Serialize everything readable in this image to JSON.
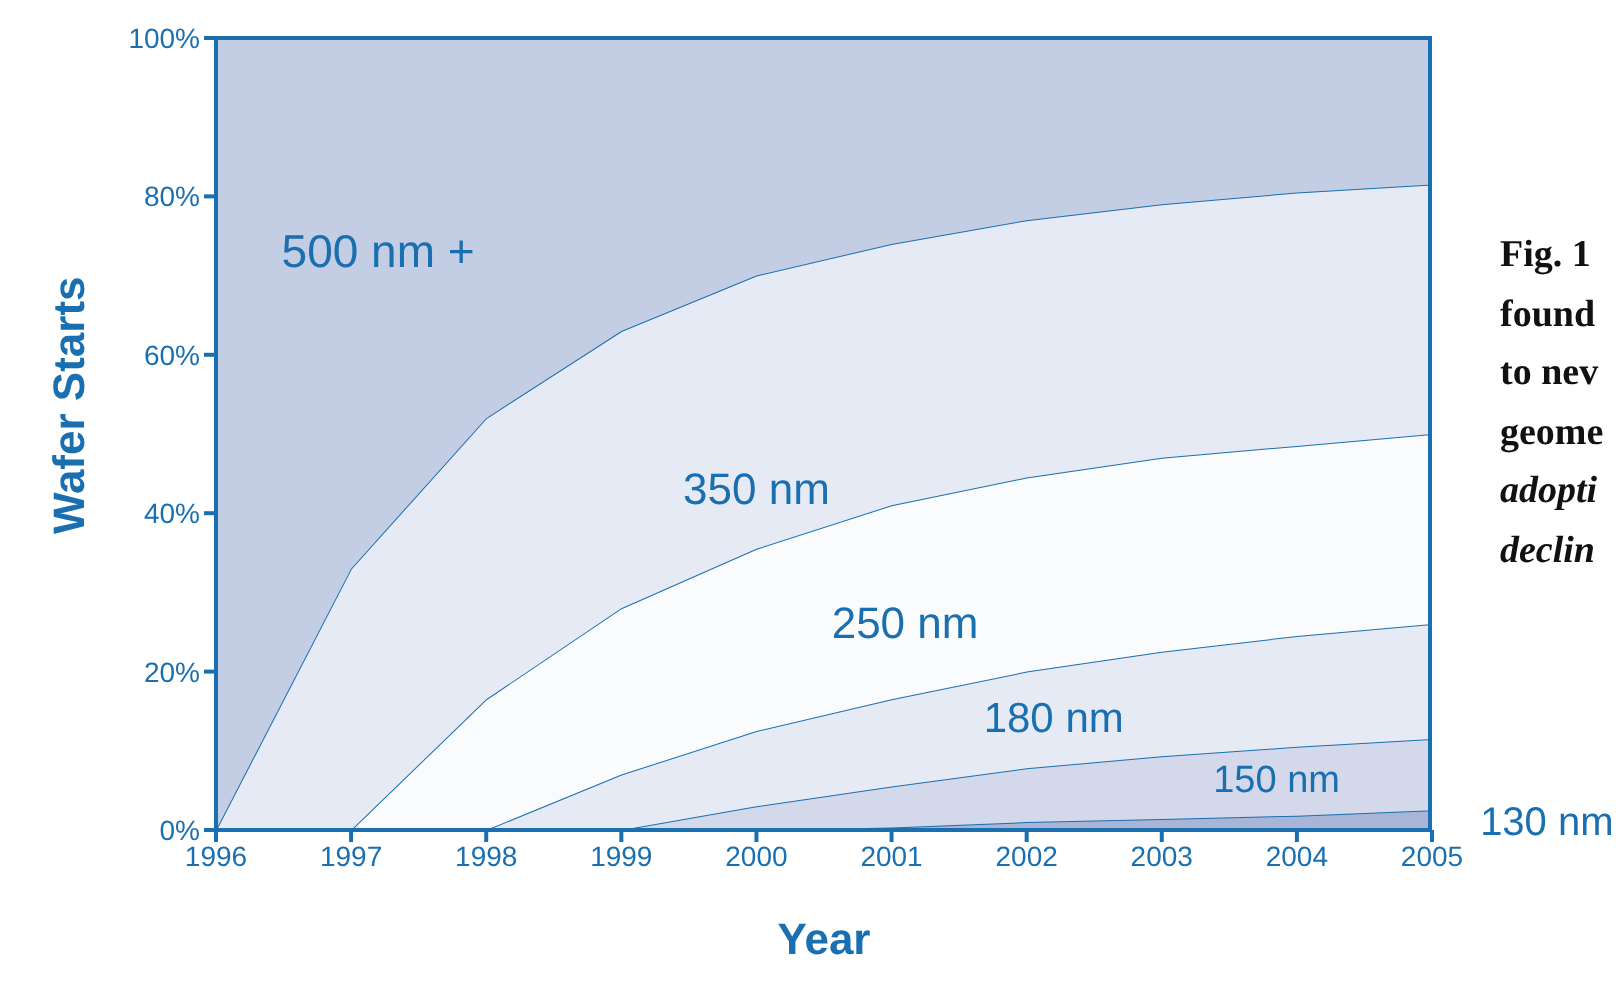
{
  "chart_data": {
    "type": "area",
    "stacked": true,
    "xlabel": "Year",
    "ylabel": "Wafer Starts",
    "x": [
      1996,
      1997,
      1998,
      1999,
      2000,
      2001,
      2002,
      2003,
      2004,
      2005
    ],
    "xlim": [
      1996,
      2005
    ],
    "xticks": [
      1996,
      1997,
      1998,
      1999,
      2000,
      2001,
      2002,
      2003,
      2004,
      2005
    ],
    "ylim": [
      0,
      100
    ],
    "yticks": [
      {
        "value": 0,
        "label": "0%"
      },
      {
        "value": 20,
        "label": "20%"
      },
      {
        "value": 40,
        "label": "40%"
      },
      {
        "value": 60,
        "label": "60%"
      },
      {
        "value": 80,
        "label": "80%"
      },
      {
        "value": 100,
        "label": "100%"
      }
    ],
    "series": [
      {
        "name": "130 nm",
        "color": "#a8b5d6",
        "values": [
          0,
          0,
          0,
          0,
          0,
          0.3,
          1,
          1.4,
          1.8,
          2.5
        ]
      },
      {
        "name": "150 nm",
        "color": "#d3d9eb",
        "values": [
          0,
          0,
          0,
          0,
          3,
          5.2,
          6.8,
          7.9,
          8.7,
          9
        ]
      },
      {
        "name": "180 nm",
        "color": "#e6eaf4",
        "values": [
          0,
          0,
          0,
          7,
          9.5,
          11,
          12.2,
          13.2,
          14,
          14.5
        ]
      },
      {
        "name": "250 nm",
        "color": "#fafbfd",
        "values": [
          0,
          0,
          16.5,
          21,
          23,
          24.5,
          24.5,
          24.5,
          24,
          24
        ]
      },
      {
        "name": "350 nm",
        "color": "#e6eaf4",
        "values": [
          0,
          33,
          35.5,
          35,
          34.5,
          33,
          32.5,
          32,
          32,
          31.5
        ]
      },
      {
        "name": "500 nm +",
        "color": "#c3cde4",
        "values": [
          100,
          67,
          48,
          37,
          30,
          26,
          23,
          21,
          19.5,
          18.5
        ]
      }
    ],
    "annotations": [
      "Fig. 1",
      "found",
      "to nev",
      "geome",
      "adopti",
      "declin"
    ]
  }
}
